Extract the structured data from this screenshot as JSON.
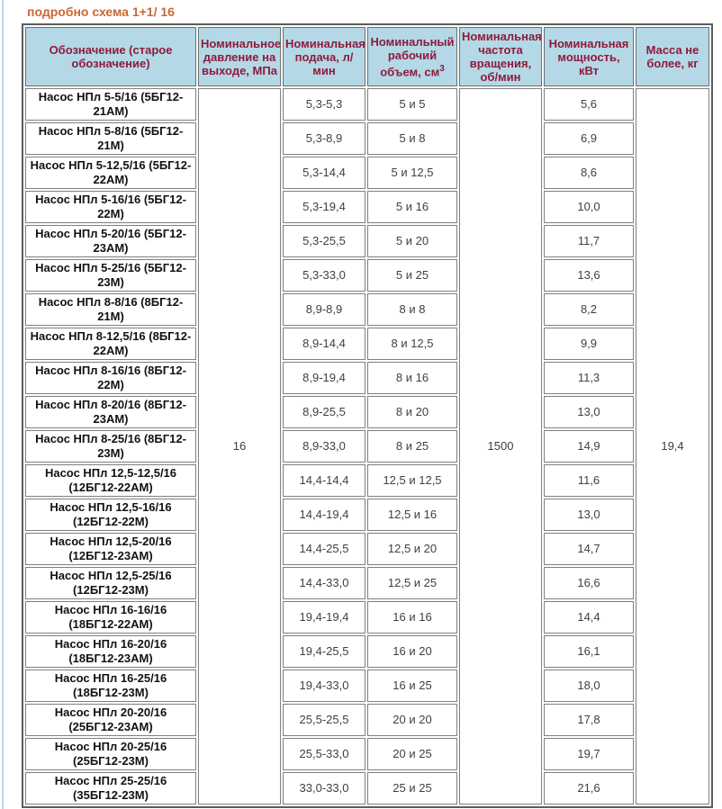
{
  "page": {
    "title": "подробно схема 1+1/ 16"
  },
  "table": {
    "headers": [
      {
        "key": "designation",
        "label": "Обозначение (старое обозначение)"
      },
      {
        "key": "pressure",
        "label": "Номинальное давление на выходе, МПа"
      },
      {
        "key": "flow",
        "label": "Номинальная подача, л/ мин"
      },
      {
        "key": "volume",
        "label": "Номинальный рабочий объем, см",
        "sup": "3"
      },
      {
        "key": "speed",
        "label": "Номинальная частота вращения, об/мин"
      },
      {
        "key": "power",
        "label": "Номинальная мощность, кВт"
      },
      {
        "key": "mass",
        "label": "Масса не более, кг"
      }
    ],
    "merged": {
      "pressure": "16",
      "speed": "1500",
      "mass": "19,4"
    },
    "rows": [
      {
        "name": "Насос НПл 5-5/16 (5БГ12-21АМ)",
        "flow": "5,3-5,3",
        "volume": "5 и 5",
        "power": "5,6"
      },
      {
        "name": "Насос НПл 5-8/16 (5БГ12-21М)",
        "flow": "5,3-8,9",
        "volume": "5 и 8",
        "power": "6,9"
      },
      {
        "name": "Насос НПл 5-12,5/16 (5БГ12-22АМ)",
        "flow": "5,3-14,4",
        "volume": "5 и 12,5",
        "power": "8,6"
      },
      {
        "name": "Насос НПл 5-16/16 (5БГ12-22М)",
        "flow": "5,3-19,4",
        "volume": "5 и 16",
        "power": "10,0"
      },
      {
        "name": "Насос НПл 5-20/16 (5БГ12-23АМ)",
        "flow": "5,3-25,5",
        "volume": "5 и 20",
        "power": "11,7"
      },
      {
        "name": "Насос НПл 5-25/16 (5БГ12-23М)",
        "flow": "5,3-33,0",
        "volume": "5 и 25",
        "power": "13,6"
      },
      {
        "name": "Насос НПл 8-8/16 (8БГ12-21М)",
        "flow": "8,9-8,9",
        "volume": "8 и 8",
        "power": "8,2"
      },
      {
        "name": "Насос НПл 8-12,5/16 (8БГ12-22АМ)",
        "flow": "8,9-14,4",
        "volume": "8 и 12,5",
        "power": "9,9"
      },
      {
        "name": "Насос НПл 8-16/16 (8БГ12-22М)",
        "flow": "8,9-19,4",
        "volume": "8 и 16",
        "power": "11,3"
      },
      {
        "name": "Насос НПл 8-20/16 (8БГ12-23АМ)",
        "flow": "8,9-25,5",
        "volume": "8 и 20",
        "power": "13,0"
      },
      {
        "name": "Насос НПл 8-25/16 (8БГ12-23М)",
        "flow": "8,9-33,0",
        "volume": "8 и 25",
        "power": "14,9"
      },
      {
        "name": "Насос НПл 12,5-12,5/16 (12БГ12-22АМ)",
        "flow": "14,4-14,4",
        "volume": "12,5 и 12,5",
        "power": "11,6"
      },
      {
        "name": "Насос НПл 12,5-16/16 (12БГ12-22М)",
        "flow": "14,4-19,4",
        "volume": "12,5 и 16",
        "power": "13,0"
      },
      {
        "name": "Насос НПл 12,5-20/16 (12БГ12-23АМ)",
        "flow": "14,4-25,5",
        "volume": "12,5 и 20",
        "power": "14,7"
      },
      {
        "name": "Насос НПл 12,5-25/16 (12БГ12-23М)",
        "flow": "14,4-33,0",
        "volume": "12,5 и 25",
        "power": "16,6"
      },
      {
        "name": "Насос НПл 16-16/16 (18БГ12-22АМ)",
        "flow": "19,4-19,4",
        "volume": "16 и 16",
        "power": "14,4"
      },
      {
        "name": "Насос НПл 16-20/16 (18БГ12-23АМ)",
        "flow": "19,4-25,5",
        "volume": "16 и 20",
        "power": "16,1"
      },
      {
        "name": "Насос НПл 16-25/16 (18БГ12-23М)",
        "flow": "19,4-33,0",
        "volume": "16 и 25",
        "power": "18,0"
      },
      {
        "name": "Насос НПл 20-20/16 (25БГ12-23АМ)",
        "flow": "25,5-25,5",
        "volume": "20 и 20",
        "power": "17,8"
      },
      {
        "name": "Насос НПл 20-25/16 (25БГ12-23М)",
        "flow": "25,5-33,0",
        "volume": "20 и 25",
        "power": "19,7"
      },
      {
        "name": "Насос НПл 25-25/16 (35БГ12-23М)",
        "flow": "33,0-33,0",
        "volume": "25 и 25",
        "power": "21,6"
      }
    ]
  }
}
